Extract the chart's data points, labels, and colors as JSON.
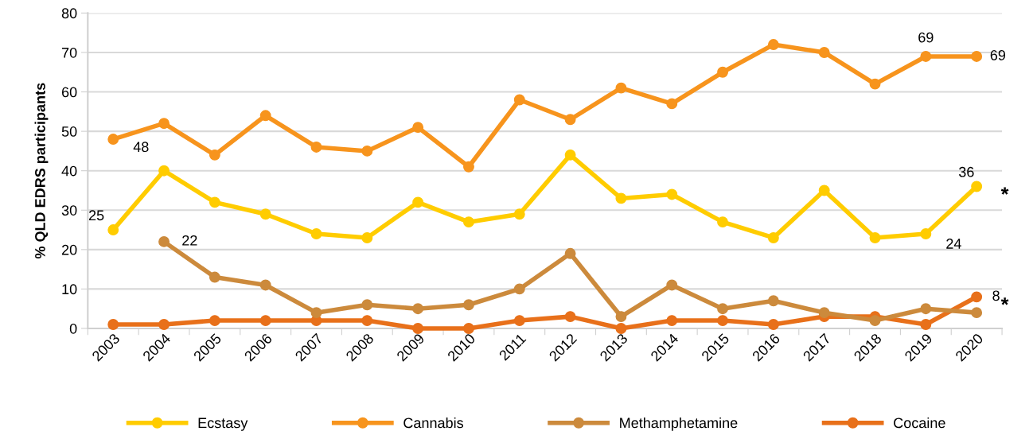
{
  "chart_data": {
    "type": "line",
    "ylabel": "% QLD EDRS participants",
    "categories": [
      "2003",
      "2004",
      "2005",
      "2006",
      "2007",
      "2008",
      "2009",
      "2010",
      "2011",
      "2012",
      "2013",
      "2014",
      "2015",
      "2016",
      "2017",
      "2018",
      "2019",
      "2020"
    ],
    "series": [
      {
        "name": "Ecstasy",
        "color": "#ffcc00",
        "values": [
          25,
          40,
          32,
          29,
          24,
          23,
          32,
          27,
          29,
          44,
          33,
          34,
          27,
          23,
          35,
          23,
          24,
          36
        ],
        "value_labels": [
          "25",
          null,
          null,
          null,
          null,
          null,
          null,
          null,
          null,
          null,
          null,
          null,
          null,
          null,
          null,
          null,
          "24",
          "36"
        ]
      },
      {
        "name": "Cannabis",
        "color": "#f7941d",
        "values": [
          48,
          52,
          44,
          54,
          46,
          45,
          51,
          41,
          58,
          53,
          61,
          57,
          65,
          72,
          70,
          62,
          69,
          69
        ],
        "value_labels": [
          "48",
          null,
          null,
          null,
          null,
          null,
          null,
          null,
          null,
          null,
          null,
          null,
          null,
          null,
          null,
          null,
          "69",
          "69"
        ]
      },
      {
        "name": "Methamphetamine",
        "color": "#cc8a3c",
        "values": [
          null,
          22,
          13,
          11,
          4,
          6,
          5,
          6,
          10,
          19,
          3,
          11,
          5,
          7,
          4,
          2,
          5,
          4
        ],
        "value_labels": [
          null,
          "22",
          null,
          null,
          null,
          null,
          null,
          null,
          null,
          null,
          null,
          null,
          null,
          null,
          null,
          null,
          null,
          null
        ]
      },
      {
        "name": "Cocaine",
        "color": "#e8701a",
        "values": [
          1,
          1,
          2,
          2,
          2,
          2,
          0,
          0,
          2,
          3,
          0,
          2,
          2,
          1,
          3,
          3,
          1,
          8
        ],
        "value_labels": [
          null,
          null,
          null,
          null,
          null,
          null,
          null,
          null,
          null,
          null,
          null,
          null,
          null,
          null,
          null,
          null,
          null,
          "8"
        ]
      }
    ],
    "annotations": [
      {
        "text": "*",
        "x": "2020",
        "y": 36
      },
      {
        "text": "*",
        "x": "2020",
        "y": 8
      }
    ],
    "ylim": [
      0,
      80
    ],
    "yticks": [
      0,
      10,
      20,
      30,
      40,
      50,
      60,
      70,
      80
    ],
    "grid": "y",
    "legend": "bottom",
    "marker": "circle",
    "line_style": "solid"
  }
}
